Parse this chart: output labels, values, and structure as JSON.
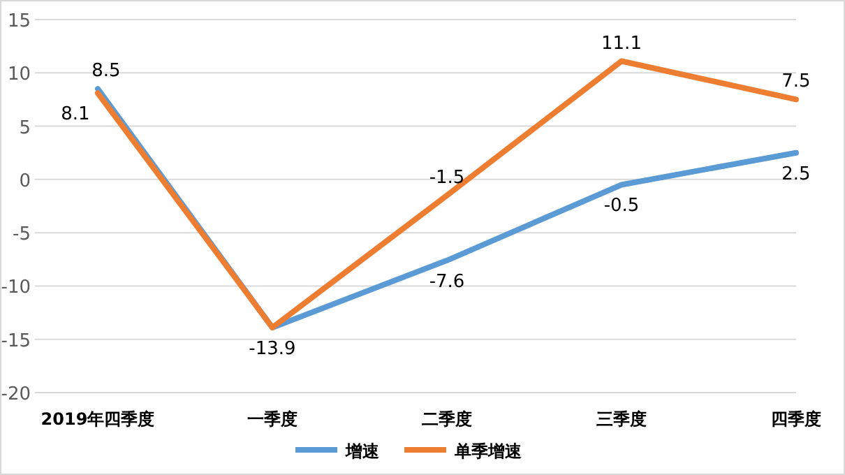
{
  "chart_data": {
    "type": "line",
    "categories": [
      "2019年四季度",
      "一季度",
      "二季度",
      "三季度",
      "四季度"
    ],
    "series": [
      {
        "name": "增速",
        "color": "#5b9bd5",
        "values": [
          8.5,
          -13.9,
          -7.6,
          -0.5,
          2.5
        ],
        "value_labels": [
          "8.5",
          "-13.9",
          "-7.6",
          "-0.5",
          "2.5"
        ]
      },
      {
        "name": "单季增速",
        "color": "#ed7d31",
        "values": [
          8.1,
          -13.9,
          -1.5,
          11.1,
          7.5
        ],
        "value_labels": [
          "8.1",
          null,
          "-1.5",
          "11.1",
          "7.5"
        ]
      }
    ],
    "ylim": [
      -20,
      15
    ],
    "yticks": [
      -20,
      -15,
      -10,
      -5,
      0,
      5,
      10,
      15
    ],
    "grid": "y",
    "legend": "bottom",
    "marker": "none",
    "line_style": "solid"
  }
}
